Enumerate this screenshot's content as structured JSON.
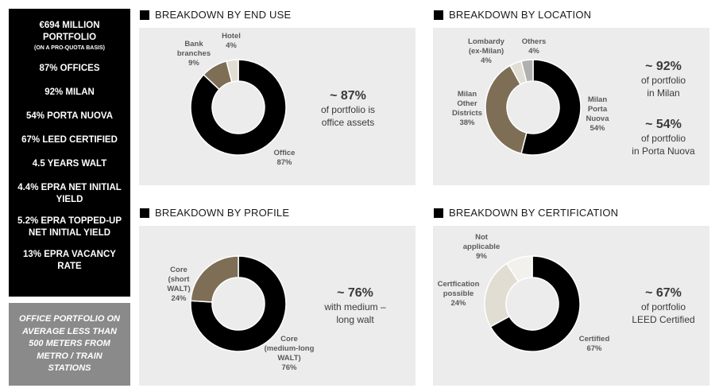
{
  "sidebar": {
    "headline": "€694 MILLION PORTFOLIO",
    "headline_line1": "€694 MILLION",
    "headline_line2": "PORTFOLIO",
    "subline": "(ON A PRO-QUOTA BASIS)",
    "items": [
      {
        "lines": [
          "87% OFFICES"
        ]
      },
      {
        "lines": [
          "92% MILAN"
        ]
      },
      {
        "lines": [
          "54% PORTA NUOVA"
        ]
      },
      {
        "lines": [
          "67% LEED CERTIFIED"
        ]
      },
      {
        "lines": [
          "4.5 YEARS WALT"
        ]
      },
      {
        "lines": [
          "4.4% EPRA NET INITIAL",
          "YIELD"
        ]
      },
      {
        "lines": [
          "5.2% EPRA TOPPED-UP",
          "NET INITIAL YIELD"
        ]
      },
      {
        "lines": [
          "13% EPRA VACANCY",
          "RATE"
        ]
      }
    ],
    "note": "OFFICE PORTFOLIO ON AVERAGE LESS THAN 500 METERS FROM METRO / TRAIN STATIONS"
  },
  "colors": {
    "black": "#000000",
    "gold": "#7d6e55",
    "light": "#e1ddd3",
    "grey": "#b0b0b0",
    "panel": "#ececec"
  },
  "chart_data": [
    {
      "type": "pie",
      "title": "BREAKDOWN BY END USE",
      "slices": [
        {
          "label": [
            "Office"
          ],
          "pct": "87%",
          "value": 87,
          "color": "#000000"
        },
        {
          "label": [
            "Bank",
            "branches"
          ],
          "pct": "9%",
          "value": 9,
          "color": "#7d6e55"
        },
        {
          "label": [
            "Hotel"
          ],
          "pct": "4%",
          "value": 4,
          "color": "#e1ddd3"
        }
      ],
      "callouts": [
        {
          "big": "~ 87%",
          "lines": [
            "of portfolio is",
            "office assets"
          ]
        }
      ]
    },
    {
      "type": "pie",
      "title": "BREAKDOWN BY LOCATION",
      "slices": [
        {
          "label": [
            "Milan",
            "Porta",
            "Nuova"
          ],
          "pct": "54%",
          "value": 54,
          "color": "#000000"
        },
        {
          "label": [
            "Milan",
            "Other",
            "Districts"
          ],
          "pct": "38%",
          "value": 38,
          "color": "#7d6e55"
        },
        {
          "label": [
            "Lombardy",
            "(ex-Milan)"
          ],
          "pct": "4%",
          "value": 4,
          "color": "#e1ddd3"
        },
        {
          "label": [
            "Others"
          ],
          "pct": "4%",
          "value": 4,
          "color": "#b0b0b0"
        }
      ],
      "callouts": [
        {
          "big": "~ 92%",
          "lines": [
            "of portfolio",
            "in Milan"
          ]
        },
        {
          "big": "~ 54%",
          "lines": [
            "of portfolio",
            "in Porta Nuova"
          ]
        }
      ]
    },
    {
      "type": "pie",
      "title": "BREAKDOWN BY PROFILE",
      "slices": [
        {
          "label": [
            "Core",
            "(medium-long",
            "WALT)"
          ],
          "pct": "76%",
          "value": 76,
          "color": "#000000"
        },
        {
          "label": [
            "Core",
            "(short",
            "WALT)"
          ],
          "pct": "24%",
          "value": 24,
          "color": "#7d6e55"
        }
      ],
      "callouts": [
        {
          "big": "~ 76%",
          "lines": [
            "with medium –",
            "long walt"
          ]
        }
      ]
    },
    {
      "type": "pie",
      "title": "BREAKDOWN BY CERTIFICATION",
      "slices": [
        {
          "label": [
            "Certified"
          ],
          "pct": "67%",
          "value": 67,
          "color": "#000000"
        },
        {
          "label": [
            "Certfication",
            "possible"
          ],
          "pct": "24%",
          "value": 24,
          "color": "#e1ddd3"
        },
        {
          "label": [
            "Not",
            "applicable"
          ],
          "pct": "9%",
          "value": 9,
          "color": "#f3f1ec"
        }
      ],
      "callouts": [
        {
          "big": "~ 67%",
          "lines": [
            "of portfolio",
            "LEED Certified"
          ]
        }
      ]
    }
  ]
}
